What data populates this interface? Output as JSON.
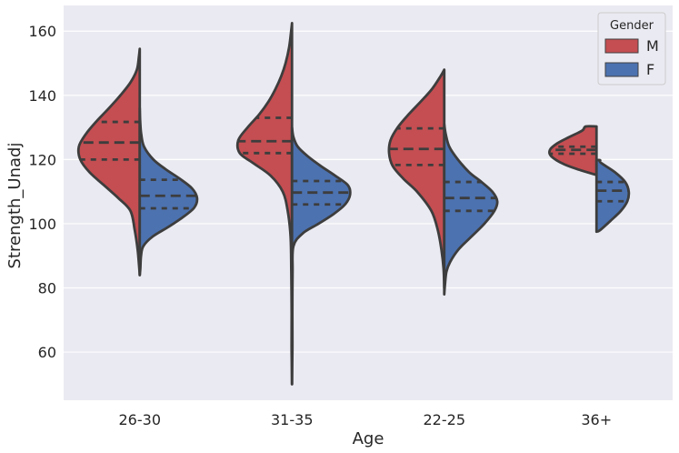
{
  "chart_data": {
    "type": "violin",
    "split": true,
    "xlabel": "Age",
    "ylabel": "Strength_Unadj",
    "categories": [
      "26-30",
      "31-35",
      "22-25",
      "36+"
    ],
    "ylim": [
      45,
      168
    ],
    "yticks": [
      60,
      80,
      100,
      120,
      140,
      160
    ],
    "grid": true,
    "legend": {
      "title": "Gender",
      "placement": "top-right",
      "entries": [
        {
          "label": "M",
          "color": "#c44e52"
        },
        {
          "label": "F",
          "color": "#4c72b0"
        }
      ]
    },
    "series": [
      {
        "name": "M",
        "color": "#c44e52",
        "violins": [
          {
            "category": "26-30",
            "quartiles": [
              120,
              125.3,
              131.7
            ],
            "profile": [
              [
                84,
                0
              ],
              [
                87,
                0.01
              ],
              [
                92,
                0.03
              ],
              [
                98,
                0.07
              ],
              [
                104,
                0.13
              ],
              [
                108,
                0.3
              ],
              [
                112,
                0.5
              ],
              [
                116,
                0.7
              ],
              [
                120,
                0.83
              ],
              [
                124,
                0.85
              ],
              [
                128,
                0.75
              ],
              [
                132,
                0.6
              ],
              [
                136,
                0.43
              ],
              [
                140,
                0.27
              ],
              [
                144,
                0.13
              ],
              [
                148,
                0.04
              ],
              [
                152,
                0.012
              ],
              [
                154.5,
                0
              ]
            ]
          },
          {
            "category": "31-35",
            "quartiles": [
              122,
              125.7,
              133
            ],
            "profile": [
              [
                50,
                0
              ],
              [
                56,
                0.003
              ],
              [
                62,
                0.006
              ],
              [
                72,
                0.005
              ],
              [
                85,
                0.01
              ],
              [
                96,
                0.02
              ],
              [
                104,
                0.06
              ],
              [
                110,
                0.13
              ],
              [
                115,
                0.3
              ],
              [
                119,
                0.55
              ],
              [
                122,
                0.73
              ],
              [
                126,
                0.75
              ],
              [
                130,
                0.62
              ],
              [
                134,
                0.46
              ],
              [
                138,
                0.33
              ],
              [
                142,
                0.23
              ],
              [
                146,
                0.15
              ],
              [
                150,
                0.09
              ],
              [
                155,
                0.04
              ],
              [
                160,
                0.012
              ],
              [
                162.5,
                0
              ]
            ]
          },
          {
            "category": "22-25",
            "quartiles": [
              118.3,
              123.3,
              129.7
            ],
            "profile": [
              [
                80,
                0
              ],
              [
                86,
                0.01
              ],
              [
                92,
                0.04
              ],
              [
                98,
                0.09
              ],
              [
                104,
                0.18
              ],
              [
                110,
                0.38
              ],
              [
                114,
                0.57
              ],
              [
                118,
                0.72
              ],
              [
                122,
                0.77
              ],
              [
                126,
                0.75
              ],
              [
                130,
                0.65
              ],
              [
                134,
                0.5
              ],
              [
                138,
                0.33
              ],
              [
                142,
                0.17
              ],
              [
                146,
                0.05
              ],
              [
                148,
                0
              ]
            ]
          },
          {
            "category": "36+",
            "quartiles": [
              121.8,
              123,
              124
            ],
            "profile": [
              [
                115.2,
                0
              ],
              [
                116.5,
                0.2
              ],
              [
                118.5,
                0.45
              ],
              [
                121,
                0.63
              ],
              [
                123,
                0.65
              ],
              [
                125,
                0.55
              ],
              [
                127,
                0.38
              ],
              [
                129,
                0.2
              ],
              [
                130.3,
                0.15
              ],
              [
                130.3,
                0
              ]
            ]
          }
        ]
      },
      {
        "name": "F",
        "color": "#4c72b0",
        "violins": [
          {
            "category": "26-30",
            "quartiles": [
              104.8,
              108.7,
              113.7
            ],
            "profile": [
              [
                84,
                0
              ],
              [
                86,
                0.008
              ],
              [
                90,
                0.018
              ],
              [
                93,
                0.05
              ],
              [
                96,
                0.18
              ],
              [
                99,
                0.4
              ],
              [
                102,
                0.6
              ],
              [
                105,
                0.76
              ],
              [
                108,
                0.8
              ],
              [
                111,
                0.73
              ],
              [
                114,
                0.56
              ],
              [
                117,
                0.36
              ],
              [
                120,
                0.19
              ],
              [
                124,
                0.06
              ],
              [
                128,
                0.02
              ],
              [
                132,
                0.006
              ],
              [
                136,
                0
              ]
            ]
          },
          {
            "category": "31-35",
            "quartiles": [
              106,
              109.7,
              113.3
            ],
            "profile": [
              [
                50,
                0
              ],
              [
                56,
                0.003
              ],
              [
                62,
                0.006
              ],
              [
                72,
                0.005
              ],
              [
                85,
                0.008
              ],
              [
                93,
                0.02
              ],
              [
                97,
                0.15
              ],
              [
                100,
                0.37
              ],
              [
                103,
                0.58
              ],
              [
                106,
                0.74
              ],
              [
                109,
                0.81
              ],
              [
                112,
                0.78
              ],
              [
                115,
                0.6
              ],
              [
                118,
                0.4
              ],
              [
                121,
                0.22
              ],
              [
                124,
                0.08
              ],
              [
                127,
                0.02
              ],
              [
                130,
                0
              ]
            ]
          },
          {
            "category": "22-25",
            "quartiles": [
              104,
              108,
              113
            ],
            "profile": [
              [
                78,
                0
              ],
              [
                81,
                0.01
              ],
              [
                85,
                0.03
              ],
              [
                88,
                0.08
              ],
              [
                92,
                0.2
              ],
              [
                96,
                0.38
              ],
              [
                100,
                0.56
              ],
              [
                104,
                0.7
              ],
              [
                107,
                0.74
              ],
              [
                110,
                0.67
              ],
              [
                113,
                0.52
              ],
              [
                116,
                0.35
              ],
              [
                120,
                0.19
              ],
              [
                124,
                0.07
              ],
              [
                128,
                0.02
              ],
              [
                131,
                0
              ]
            ]
          },
          {
            "category": "36+",
            "quartiles": [
              107,
              110.3,
              113
            ],
            "profile": [
              [
                97.5,
                0
              ],
              [
                98,
                0.05
              ],
              [
                101,
                0.2
              ],
              [
                104,
                0.34
              ],
              [
                107,
                0.43
              ],
              [
                110,
                0.45
              ],
              [
                113,
                0.4
              ],
              [
                116,
                0.26
              ],
              [
                119,
                0.06
              ],
              [
                119.8,
                0.05
              ],
              [
                119.8,
                0
              ]
            ]
          }
        ]
      }
    ]
  }
}
